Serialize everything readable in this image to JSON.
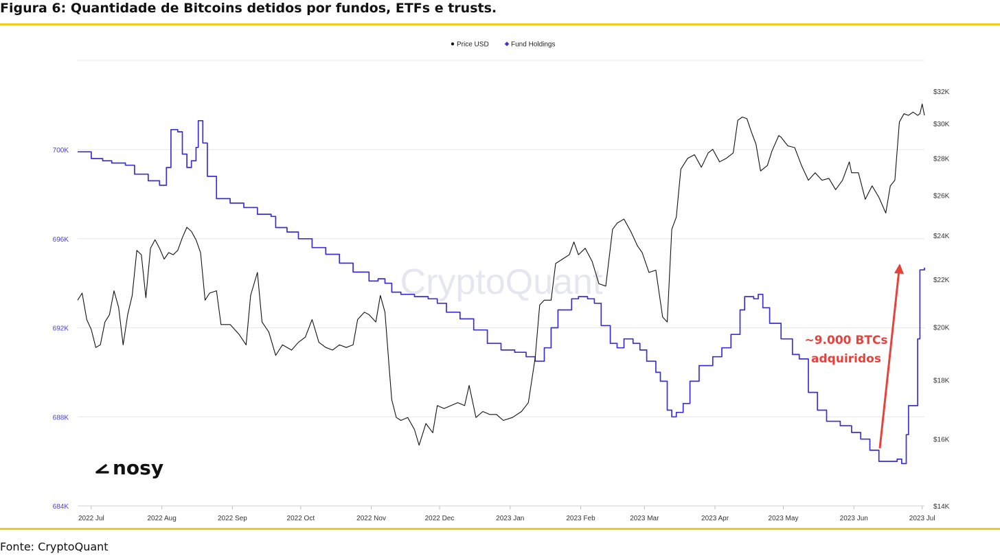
{
  "title": "Figura 6: Quantidade de Bitcoins detidos por fundos, ETFs e trusts.",
  "source": "Fonte: CryptoQuant",
  "watermark": "CryptoQuant",
  "logo": "nosy",
  "annotation": [
    "~9.000 BTCs",
    "adquiridos"
  ],
  "colors": {
    "accent_rule": "#f3cc1b",
    "fund": "#3a2fd1",
    "price": "#111111",
    "annotation": "#e8413c"
  },
  "chart_data": {
    "type": "line",
    "legend": [
      {
        "name": "Price USD",
        "color": "#111111"
      },
      {
        "name": "Fund Holdings",
        "color": "#3a2fd1"
      }
    ],
    "legend_position": "top-center",
    "x_ticks": [
      "2022 Jul",
      "2022 Aug",
      "2022 Sep",
      "2022 Oct",
      "2022 Nov",
      "2022 Dec",
      "2023 Jan",
      "2023 Feb",
      "2023 Mar",
      "2023 Apr",
      "2023 May",
      "2023 Jun",
      "2023 Jul"
    ],
    "x_range": [
      "2022-06-25",
      "2023-07-02"
    ],
    "y_left": {
      "ticks": [
        "684K",
        "688K",
        "692K",
        "696K",
        "700K"
      ],
      "range": [
        684000,
        700000
      ]
    },
    "y_right": {
      "scale": "log",
      "ticks": [
        "$14K",
        "$16K",
        "$18K",
        "$20K",
        "$22K",
        "$24K",
        "$26K",
        "$28K",
        "$30K",
        "$32K"
      ],
      "tick_values": [
        14000,
        16000,
        18000,
        20000,
        22000,
        24000,
        26000,
        28000,
        30000,
        32000
      ]
    },
    "grid": "horizontal",
    "series": [
      {
        "name": "Fund Holdings",
        "axis": "left",
        "points": [
          [
            "2022-06-25",
            699900
          ],
          [
            "2022-06-29",
            699900
          ],
          [
            "2022-07-01",
            699600
          ],
          [
            "2022-07-06",
            699500
          ],
          [
            "2022-07-10",
            699400
          ],
          [
            "2022-07-16",
            699300
          ],
          [
            "2022-07-20",
            698900
          ],
          [
            "2022-07-26",
            698600
          ],
          [
            "2022-07-31",
            698400
          ],
          [
            "2022-08-03",
            699200
          ],
          [
            "2022-08-05",
            700900
          ],
          [
            "2022-08-08",
            700800
          ],
          [
            "2022-08-10",
            699800
          ],
          [
            "2022-08-12",
            699200
          ],
          [
            "2022-08-14",
            699500
          ],
          [
            "2022-08-16",
            700100
          ],
          [
            "2022-08-17",
            701300
          ],
          [
            "2022-08-19",
            700300
          ],
          [
            "2022-08-21",
            698800
          ],
          [
            "2022-08-25",
            697800
          ],
          [
            "2022-08-31",
            697600
          ],
          [
            "2022-09-06",
            697400
          ],
          [
            "2022-09-12",
            697100
          ],
          [
            "2022-09-18",
            697000
          ],
          [
            "2022-09-20",
            696500
          ],
          [
            "2022-09-25",
            696300
          ],
          [
            "2022-09-30",
            696000
          ],
          [
            "2022-10-06",
            695600
          ],
          [
            "2022-10-12",
            695300
          ],
          [
            "2022-10-18",
            694900
          ],
          [
            "2022-10-24",
            694500
          ],
          [
            "2022-10-31",
            694100
          ],
          [
            "2022-11-04",
            694200
          ],
          [
            "2022-11-07",
            694000
          ],
          [
            "2022-11-10",
            693600
          ],
          [
            "2022-11-14",
            693500
          ],
          [
            "2022-11-20",
            693400
          ],
          [
            "2022-11-26",
            693300
          ],
          [
            "2022-11-30",
            693100
          ],
          [
            "2022-12-04",
            692700
          ],
          [
            "2022-12-10",
            692400
          ],
          [
            "2022-12-16",
            691900
          ],
          [
            "2022-12-22",
            691300
          ],
          [
            "2022-12-28",
            691000
          ],
          [
            "2023-01-03",
            690900
          ],
          [
            "2023-01-08",
            690700
          ],
          [
            "2023-01-12",
            690500
          ],
          [
            "2023-01-16",
            691100
          ],
          [
            "2023-01-19",
            692000
          ],
          [
            "2023-01-22",
            692800
          ],
          [
            "2023-01-28",
            693300
          ],
          [
            "2023-01-31",
            693400
          ],
          [
            "2023-02-04",
            693300
          ],
          [
            "2023-02-07",
            693100
          ],
          [
            "2023-02-10",
            692100
          ],
          [
            "2023-02-14",
            691300
          ],
          [
            "2023-02-17",
            691100
          ],
          [
            "2023-02-20",
            691500
          ],
          [
            "2023-02-24",
            691300
          ],
          [
            "2023-02-27",
            691000
          ],
          [
            "2023-03-02",
            690500
          ],
          [
            "2023-03-06",
            690000
          ],
          [
            "2023-03-08",
            689600
          ],
          [
            "2023-03-11",
            688300
          ],
          [
            "2023-03-13",
            688000
          ],
          [
            "2023-03-15",
            688200
          ],
          [
            "2023-03-18",
            688600
          ],
          [
            "2023-03-21",
            689600
          ],
          [
            "2023-03-25",
            690300
          ],
          [
            "2023-03-31",
            690700
          ],
          [
            "2023-04-04",
            691100
          ],
          [
            "2023-04-08",
            691700
          ],
          [
            "2023-04-12",
            692800
          ],
          [
            "2023-04-14",
            693400
          ],
          [
            "2023-04-18",
            693300
          ],
          [
            "2023-04-20",
            693500
          ],
          [
            "2023-04-22",
            692900
          ],
          [
            "2023-04-25",
            692200
          ],
          [
            "2023-04-30",
            691500
          ],
          [
            "2023-05-05",
            690800
          ],
          [
            "2023-05-08",
            690600
          ],
          [
            "2023-05-12",
            689100
          ],
          [
            "2023-05-16",
            688300
          ],
          [
            "2023-05-20",
            687800
          ],
          [
            "2023-05-26",
            687600
          ],
          [
            "2023-05-31",
            687300
          ],
          [
            "2023-06-04",
            687000
          ],
          [
            "2023-06-08",
            686500
          ],
          [
            "2023-06-12",
            686000
          ],
          [
            "2023-06-16",
            686000
          ],
          [
            "2023-06-20",
            686100
          ],
          [
            "2023-06-22",
            685900
          ],
          [
            "2023-06-24",
            687200
          ],
          [
            "2023-06-25",
            688500
          ],
          [
            "2023-06-27",
            688500
          ],
          [
            "2023-06-29",
            691500
          ],
          [
            "2023-06-30",
            694600
          ],
          [
            "2023-07-02",
            694700
          ]
        ]
      },
      {
        "name": "Price USD",
        "axis": "right",
        "points": [
          [
            "2022-06-25",
            21100
          ],
          [
            "2022-06-27",
            21400
          ],
          [
            "2022-06-29",
            20300
          ],
          [
            "2022-07-01",
            19900
          ],
          [
            "2022-07-03",
            19200
          ],
          [
            "2022-07-05",
            19300
          ],
          [
            "2022-07-07",
            20200
          ],
          [
            "2022-07-09",
            20500
          ],
          [
            "2022-07-11",
            21500
          ],
          [
            "2022-07-13",
            20800
          ],
          [
            "2022-07-15",
            19300
          ],
          [
            "2022-07-17",
            20500
          ],
          [
            "2022-07-19",
            21300
          ],
          [
            "2022-07-21",
            23300
          ],
          [
            "2022-07-23",
            23100
          ],
          [
            "2022-07-25",
            21200
          ],
          [
            "2022-07-27",
            23400
          ],
          [
            "2022-07-29",
            23800
          ],
          [
            "2022-07-31",
            23400
          ],
          [
            "2022-08-02",
            22900
          ],
          [
            "2022-08-04",
            23200
          ],
          [
            "2022-08-06",
            23100
          ],
          [
            "2022-08-08",
            23300
          ],
          [
            "2022-08-10",
            23900
          ],
          [
            "2022-08-12",
            24400
          ],
          [
            "2022-08-14",
            24200
          ],
          [
            "2022-08-16",
            23800
          ],
          [
            "2022-08-18",
            23200
          ],
          [
            "2022-08-20",
            21100
          ],
          [
            "2022-08-22",
            21400
          ],
          [
            "2022-08-25",
            21500
          ],
          [
            "2022-08-27",
            20100
          ],
          [
            "2022-08-31",
            20100
          ],
          [
            "2022-09-04",
            19700
          ],
          [
            "2022-09-07",
            19300
          ],
          [
            "2022-09-09",
            21300
          ],
          [
            "2022-09-12",
            22300
          ],
          [
            "2022-09-14",
            20200
          ],
          [
            "2022-09-17",
            19800
          ],
          [
            "2022-09-20",
            18900
          ],
          [
            "2022-09-23",
            19300
          ],
          [
            "2022-09-27",
            19100
          ],
          [
            "2022-09-30",
            19400
          ],
          [
            "2022-10-03",
            19600
          ],
          [
            "2022-10-06",
            20300
          ],
          [
            "2022-10-09",
            19400
          ],
          [
            "2022-10-12",
            19200
          ],
          [
            "2022-10-15",
            19100
          ],
          [
            "2022-10-18",
            19300
          ],
          [
            "2022-10-21",
            19200
          ],
          [
            "2022-10-24",
            19300
          ],
          [
            "2022-10-26",
            20300
          ],
          [
            "2022-10-29",
            20600
          ],
          [
            "2022-10-31",
            20500
          ],
          [
            "2022-11-03",
            20200
          ],
          [
            "2022-11-05",
            21300
          ],
          [
            "2022-11-07",
            20600
          ],
          [
            "2022-11-09",
            18300
          ],
          [
            "2022-11-10",
            17300
          ],
          [
            "2022-11-12",
            16700
          ],
          [
            "2022-11-14",
            16600
          ],
          [
            "2022-11-17",
            16700
          ],
          [
            "2022-11-20",
            16300
          ],
          [
            "2022-11-22",
            15800
          ],
          [
            "2022-11-25",
            16500
          ],
          [
            "2022-11-28",
            16200
          ],
          [
            "2022-11-30",
            17100
          ],
          [
            "2022-12-03",
            17000
          ],
          [
            "2022-12-06",
            17100
          ],
          [
            "2022-12-09",
            17200
          ],
          [
            "2022-12-12",
            17100
          ],
          [
            "2022-12-14",
            17800
          ],
          [
            "2022-12-17",
            16700
          ],
          [
            "2022-12-20",
            16900
          ],
          [
            "2022-12-23",
            16800
          ],
          [
            "2022-12-26",
            16800
          ],
          [
            "2022-12-29",
            16600
          ],
          [
            "2023-01-02",
            16700
          ],
          [
            "2023-01-06",
            16900
          ],
          [
            "2023-01-09",
            17200
          ],
          [
            "2023-01-12",
            18800
          ],
          [
            "2023-01-14",
            20900
          ],
          [
            "2023-01-16",
            21100
          ],
          [
            "2023-01-19",
            21100
          ],
          [
            "2023-01-21",
            22700
          ],
          [
            "2023-01-24",
            22900
          ],
          [
            "2023-01-27",
            23100
          ],
          [
            "2023-01-29",
            23700
          ],
          [
            "2023-01-31",
            23100
          ],
          [
            "2023-02-03",
            23400
          ],
          [
            "2023-02-06",
            22800
          ],
          [
            "2023-02-09",
            21800
          ],
          [
            "2023-02-12",
            21700
          ],
          [
            "2023-02-15",
            24300
          ],
          [
            "2023-02-17",
            24600
          ],
          [
            "2023-02-20",
            24800
          ],
          [
            "2023-02-23",
            24200
          ],
          [
            "2023-02-26",
            23500
          ],
          [
            "2023-02-28",
            23200
          ],
          [
            "2023-03-03",
            22300
          ],
          [
            "2023-03-06",
            22400
          ],
          [
            "2023-03-09",
            20400
          ],
          [
            "2023-03-11",
            20200
          ],
          [
            "2023-03-13",
            24300
          ],
          [
            "2023-03-15",
            24900
          ],
          [
            "2023-03-17",
            27400
          ],
          [
            "2023-03-20",
            28000
          ],
          [
            "2023-03-23",
            28200
          ],
          [
            "2023-03-26",
            27500
          ],
          [
            "2023-03-29",
            28300
          ],
          [
            "2023-03-31",
            28500
          ],
          [
            "2023-04-03",
            27800
          ],
          [
            "2023-04-06",
            28000
          ],
          [
            "2023-04-09",
            28300
          ],
          [
            "2023-04-11",
            30200
          ],
          [
            "2023-04-13",
            30400
          ],
          [
            "2023-04-15",
            30300
          ],
          [
            "2023-04-17",
            29500
          ],
          [
            "2023-04-19",
            28800
          ],
          [
            "2023-04-21",
            27300
          ],
          [
            "2023-04-24",
            27600
          ],
          [
            "2023-04-26",
            28400
          ],
          [
            "2023-04-29",
            29300
          ],
          [
            "2023-04-30",
            29200
          ],
          [
            "2023-05-03",
            28700
          ],
          [
            "2023-05-06",
            28600
          ],
          [
            "2023-05-09",
            27600
          ],
          [
            "2023-05-12",
            26800
          ],
          [
            "2023-05-15",
            27200
          ],
          [
            "2023-05-18",
            26800
          ],
          [
            "2023-05-21",
            26900
          ],
          [
            "2023-05-24",
            26300
          ],
          [
            "2023-05-27",
            26800
          ],
          [
            "2023-05-30",
            27800
          ],
          [
            "2023-05-31",
            27200
          ],
          [
            "2023-06-03",
            27200
          ],
          [
            "2023-06-06",
            25800
          ],
          [
            "2023-06-09",
            26500
          ],
          [
            "2023-06-12",
            25900
          ],
          [
            "2023-06-15",
            25100
          ],
          [
            "2023-06-17",
            26500
          ],
          [
            "2023-06-19",
            26800
          ],
          [
            "2023-06-21",
            30100
          ],
          [
            "2023-06-23",
            30600
          ],
          [
            "2023-06-25",
            30500
          ],
          [
            "2023-06-27",
            30700
          ],
          [
            "2023-06-29",
            30500
          ],
          [
            "2023-06-30",
            30600
          ],
          [
            "2023-07-01",
            31200
          ],
          [
            "2023-07-02",
            30500
          ]
        ]
      }
    ]
  }
}
